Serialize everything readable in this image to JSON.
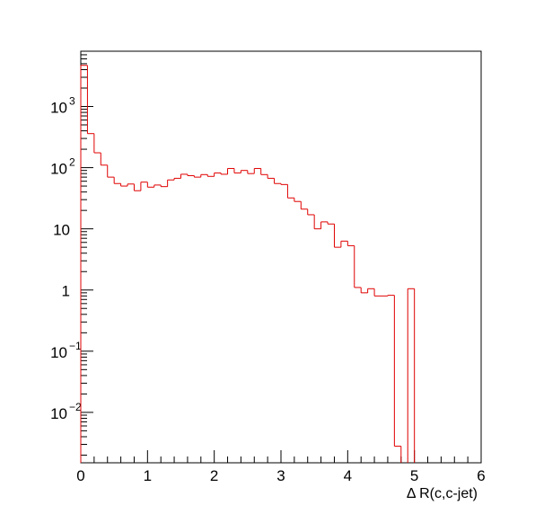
{
  "chart_data": {
    "type": "histogram",
    "title": "",
    "xlabel": "Δ R(c,c-jet)",
    "ylabel": "",
    "xlim": [
      0,
      6
    ],
    "ylim": [
      0.0015,
      8000
    ],
    "y_scale": "log",
    "grid": false,
    "legend": "none",
    "line_color": "#e00000",
    "x_ticks": [
      {
        "value": 0,
        "label": "0"
      },
      {
        "value": 1,
        "label": "1"
      },
      {
        "value": 2,
        "label": "2"
      },
      {
        "value": 3,
        "label": "3"
      },
      {
        "value": 4,
        "label": "4"
      },
      {
        "value": 5,
        "label": "5"
      },
      {
        "value": 6,
        "label": "6"
      }
    ],
    "y_ticks": [
      {
        "value": 0.01,
        "base": "10",
        "exp": "−2"
      },
      {
        "value": 0.1,
        "base": "10",
        "exp": "−1"
      },
      {
        "value": 1,
        "base": "1",
        "exp": ""
      },
      {
        "value": 10,
        "base": "10",
        "exp": ""
      },
      {
        "value": 100,
        "base": "10",
        "exp": "2"
      },
      {
        "value": 1000,
        "base": "10",
        "exp": "3"
      }
    ],
    "bins": {
      "edges_start": 0,
      "bin_width": 0.1,
      "values": [
        4700,
        360,
        175,
        110,
        70,
        55,
        50,
        54,
        42,
        58,
        48,
        52,
        49,
        63,
        67,
        78,
        74,
        70,
        77,
        72,
        82,
        78,
        97,
        82,
        90,
        80,
        97,
        77,
        67,
        55,
        53,
        32,
        28,
        21,
        17,
        10,
        13,
        12,
        5,
        6.3,
        5.3,
        1.1,
        0.9,
        1.05,
        0.8,
        0.8,
        0.82,
        0.0028,
        0,
        1.05,
        0,
        0,
        0,
        0,
        0,
        0,
        0,
        0,
        0,
        0
      ]
    }
  }
}
